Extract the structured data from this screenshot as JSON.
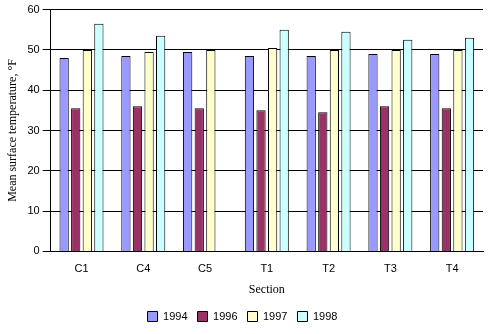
{
  "chart_data": {
    "type": "bar",
    "y_label": "Mean surface temperature, °F",
    "x_label": "Section",
    "categories": [
      "C1",
      "C4",
      "C5",
      "T1",
      "T2",
      "T3",
      "T4"
    ],
    "series": [
      {
        "name": "1994",
        "color": "#9999ff",
        "values": [
          48,
          48.5,
          49.5,
          48.5,
          48.5,
          49,
          49
        ]
      },
      {
        "name": "1996",
        "color": "#993366",
        "values": [
          35.5,
          36,
          35.5,
          35,
          34.5,
          36,
          35.5
        ]
      },
      {
        "name": "1997",
        "color": "#ffffcc",
        "values": [
          50,
          49.5,
          50,
          50.5,
          50,
          50,
          50
        ]
      },
      {
        "name": "1998",
        "color": "#ccffff",
        "values": [
          56.5,
          53.5,
          null,
          55,
          54.5,
          52.5,
          53
        ]
      }
    ],
    "ylim": [
      0,
      60
    ],
    "yticks": [
      0,
      10,
      20,
      30,
      40,
      50,
      60
    ],
    "grid": true,
    "legend": "bottom"
  }
}
